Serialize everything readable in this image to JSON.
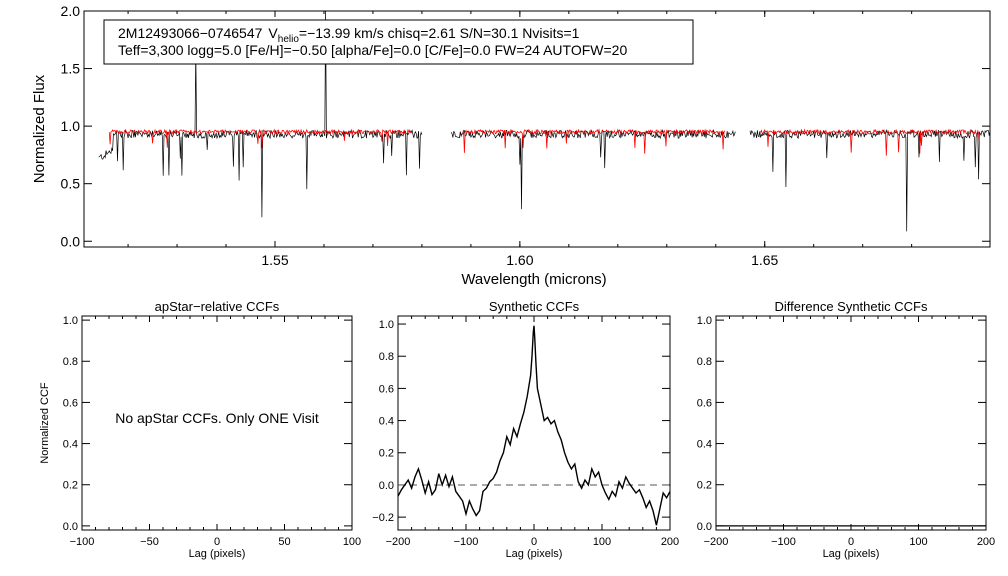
{
  "figure_title": "APOGEE visit spectrum and cross-correlation functions",
  "chart_data": [
    {
      "type": "line",
      "title": "",
      "xlabel": "Wavelength (microns)",
      "ylabel": "Normalized Flux",
      "xlim": [
        1.511,
        1.696
      ],
      "ylim": [
        -0.05,
        2.0
      ],
      "xticks": [
        1.55,
        1.6,
        1.65
      ],
      "xtick_labels": [
        "1.55",
        "1.60",
        "1.65"
      ],
      "yticks": [
        0.0,
        0.5,
        1.0,
        1.5,
        2.0
      ],
      "ytick_labels": [
        "0.0",
        "0.5",
        "1.0",
        "1.5",
        "2.0"
      ],
      "annotation": {
        "line1_star": "2M12493066−0746547",
        "line1_v": "V",
        "line1_v_sub": "helio",
        "line1_rest": "=−13.99 km/s  chisq=2.61  S/N=30.1  Nvisits=1",
        "line2": "Teff=3,300 logg=5.0 [Fe/H]=−0.50 [alpha/Fe]=0.0 [C/Fe]=0.0 FW=24 AUTOFW=20"
      },
      "chip_ranges": [
        [
          1.514,
          1.58
        ],
        [
          1.586,
          1.644
        ],
        [
          1.647,
          1.696
        ]
      ],
      "series": [
        {
          "name": "observed spectrum",
          "color": "#000000",
          "level": 0.93,
          "noise": 0.035
        },
        {
          "name": "synthetic model",
          "color": "#ff0000",
          "level": 0.95,
          "noise": 0.018
        }
      ]
    },
    {
      "type": "line",
      "title": "apStar−relative CCFs",
      "xlabel": "Lag (pixels)",
      "ylabel": "Normalized CCF",
      "xlim": [
        -100,
        100
      ],
      "ylim": [
        -0.02,
        1.02
      ],
      "xticks": [
        -100,
        -50,
        0,
        50,
        100
      ],
      "xtick_labels": [
        "−100",
        "−50",
        "0",
        "50",
        "100"
      ],
      "yticks": [
        0.0,
        0.2,
        0.4,
        0.6,
        0.8,
        1.0
      ],
      "ytick_labels": [
        "0.0",
        "0.2",
        "0.4",
        "0.6",
        "0.8",
        "1.0"
      ],
      "message": "No apStar CCFs.  Only ONE Visit"
    },
    {
      "type": "line",
      "title": "Synthetic CCFs",
      "xlabel": "Lag (pixels)",
      "ylabel": "",
      "xlim": [
        -200,
        200
      ],
      "ylim": [
        -0.28,
        1.05
      ],
      "xticks": [
        -200,
        -100,
        0,
        100,
        200
      ],
      "xtick_labels": [
        "−200",
        "−100",
        "0",
        "100",
        "200"
      ],
      "yticks": [
        -0.2,
        0.0,
        0.2,
        0.4,
        0.6,
        0.8,
        1.0
      ],
      "ytick_labels": [
        "−0.2",
        "0.0",
        "0.2",
        "0.4",
        "0.6",
        "0.8",
        "1.0"
      ],
      "zero_line": 0.0,
      "series": [
        {
          "name": "synthetic CCF",
          "x": [
            -200,
            -195,
            -190,
            -185,
            -180,
            -175,
            -170,
            -165,
            -160,
            -155,
            -150,
            -145,
            -140,
            -135,
            -130,
            -125,
            -120,
            -115,
            -110,
            -105,
            -100,
            -95,
            -90,
            -85,
            -80,
            -75,
            -70,
            -65,
            -60,
            -55,
            -50,
            -45,
            -40,
            -35,
            -30,
            -25,
            -20,
            -15,
            -10,
            -5,
            -3,
            -1,
            0,
            1,
            3,
            5,
            10,
            15,
            20,
            25,
            30,
            35,
            40,
            45,
            50,
            55,
            60,
            65,
            70,
            75,
            80,
            85,
            90,
            95,
            100,
            105,
            110,
            115,
            120,
            125,
            130,
            135,
            140,
            145,
            150,
            155,
            160,
            165,
            170,
            175,
            180,
            185,
            190,
            195,
            200
          ],
          "y": [
            -0.07,
            -0.03,
            0.0,
            0.03,
            -0.02,
            0.05,
            0.1,
            0.03,
            -0.05,
            0.02,
            -0.06,
            -0.03,
            0.07,
            0.0,
            0.06,
            -0.01,
            0.05,
            -0.04,
            -0.07,
            -0.1,
            -0.18,
            -0.1,
            -0.15,
            -0.19,
            -0.16,
            -0.04,
            -0.02,
            0.02,
            0.04,
            0.08,
            0.15,
            0.2,
            0.3,
            0.25,
            0.35,
            0.3,
            0.38,
            0.45,
            0.55,
            0.68,
            0.8,
            0.95,
            0.99,
            0.92,
            0.75,
            0.6,
            0.5,
            0.4,
            0.42,
            0.38,
            0.4,
            0.33,
            0.28,
            0.2,
            0.14,
            0.1,
            0.13,
            0.02,
            -0.02,
            0.03,
            0.0,
            0.1,
            0.05,
            0.08,
            0.0,
            -0.05,
            -0.09,
            -0.04,
            -0.07,
            0.02,
            -0.02,
            0.05,
            0.01,
            -0.02,
            -0.05,
            -0.03,
            -0.08,
            -0.14,
            -0.1,
            -0.16,
            -0.25,
            -0.15,
            -0.05,
            -0.08,
            -0.04
          ]
        }
      ]
    },
    {
      "type": "line",
      "title": "Difference Synthetic CCFs",
      "xlabel": "Lag (pixels)",
      "ylabel": "",
      "xlim": [
        -200,
        200
      ],
      "ylim": [
        -0.02,
        1.02
      ],
      "xticks": [
        -200,
        -100,
        0,
        100,
        200
      ],
      "xtick_labels": [
        "−200",
        "−100",
        "0",
        "100",
        "200"
      ],
      "yticks": [
        0.0,
        0.2,
        0.4,
        0.6,
        0.8,
        1.0
      ],
      "ytick_labels": [
        "0.0",
        "0.2",
        "0.4",
        "0.6",
        "0.8",
        "1.0"
      ],
      "zero_line": 0.0
    }
  ]
}
